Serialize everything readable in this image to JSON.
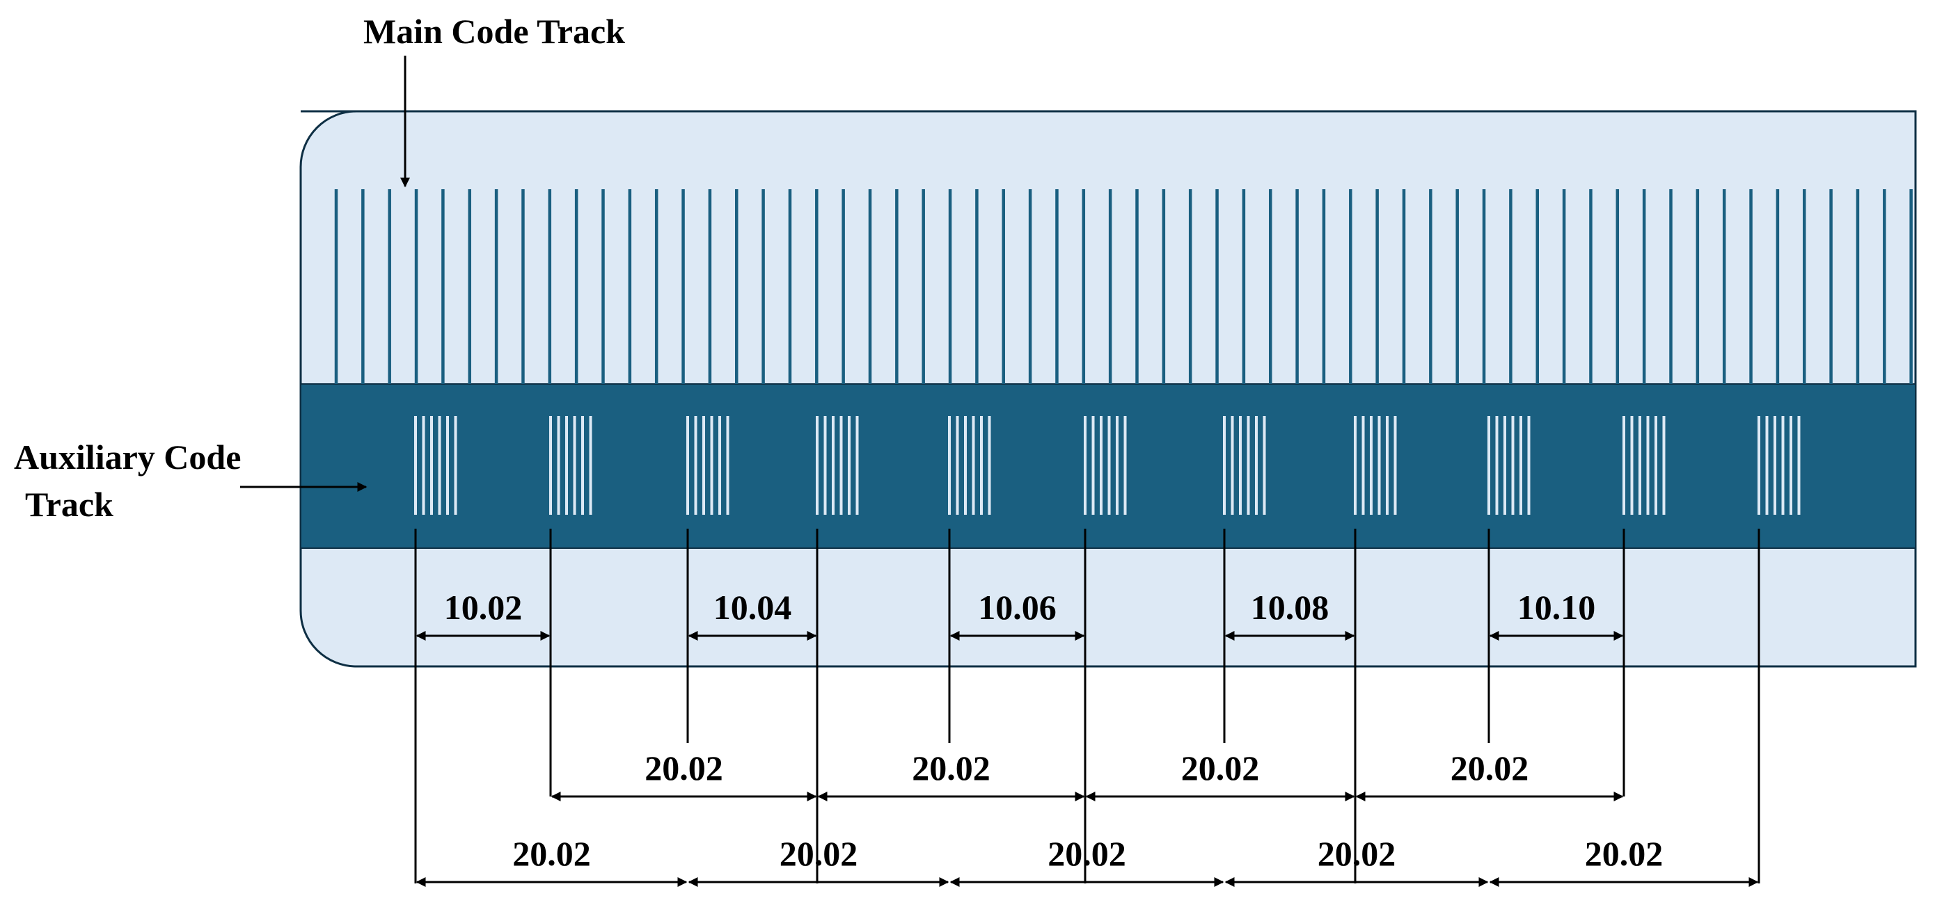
{
  "labels": {
    "main_track": "Main Code Track",
    "aux_track_line1": "Auxiliary Code",
    "aux_track_line2": "Track"
  },
  "colors": {
    "strip_fill": "#dde9f5",
    "aux_band": "#1a5f80",
    "main_line": "#1a5f80",
    "aux_line": "#dde9f5",
    "dim_line": "#000000"
  },
  "main_track": {
    "line_count": 60
  },
  "aux_track": {
    "group_count": 11,
    "lines_per_group": 6
  },
  "dimensions": {
    "small": [
      "10.02",
      "10.04",
      "10.06",
      "10.08",
      "10.10"
    ],
    "middle_row": [
      "20.02",
      "20.02",
      "20.02",
      "20.02"
    ],
    "bottom_row": [
      "20.02",
      "20.02",
      "20.02",
      "20.02",
      "20.02"
    ]
  }
}
